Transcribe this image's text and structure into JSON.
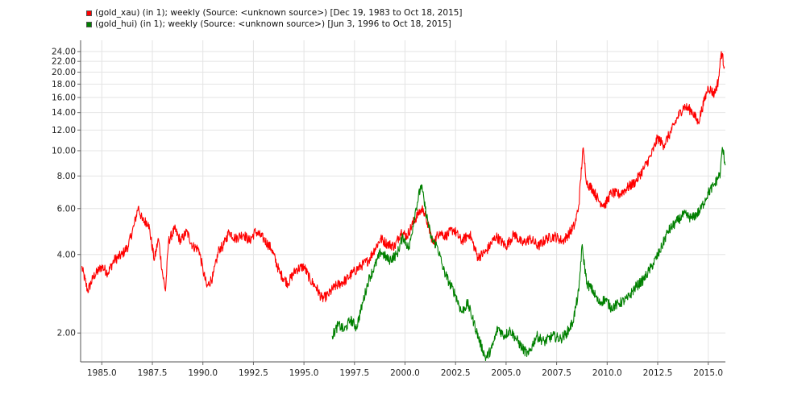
{
  "chart_data": {
    "type": "line",
    "title": "",
    "xlabel": "",
    "ylabel": "",
    "y_scale": "log",
    "xlim": [
      1983.95,
      2015.85
    ],
    "ylim": [
      1.55,
      26.5
    ],
    "grid": true,
    "legend_position": "top-left",
    "x_ticks": [
      "1985.0",
      "1987.5",
      "1990.0",
      "1992.5",
      "1995.0",
      "1997.5",
      "2000.0",
      "2002.5",
      "2005.0",
      "2007.5",
      "2010.0",
      "2012.5",
      "2015.0"
    ],
    "y_ticks": [
      "2.00",
      "4.00",
      "6.00",
      "8.00",
      "10.00",
      "12.00",
      "14.00",
      "16.00",
      "18.00",
      "20.00",
      "22.00",
      "24.00"
    ],
    "series": [
      {
        "name": "(gold_xau) (in 1); weekly (Source: <unknown source>) [Dec 19, 1983 to Oct 18, 2015]",
        "color": "#ff0000",
        "points": [
          [
            1984.0,
            3.6
          ],
          [
            1984.3,
            2.9
          ],
          [
            1984.6,
            3.3
          ],
          [
            1985.0,
            3.6
          ],
          [
            1985.3,
            3.4
          ],
          [
            1985.6,
            3.8
          ],
          [
            1986.0,
            4.0
          ],
          [
            1986.3,
            4.3
          ],
          [
            1986.6,
            5.2
          ],
          [
            1986.8,
            6.1
          ],
          [
            1987.0,
            5.4
          ],
          [
            1987.3,
            5.3
          ],
          [
            1987.6,
            3.8
          ],
          [
            1987.8,
            4.6
          ],
          [
            1988.0,
            3.4
          ],
          [
            1988.15,
            2.9
          ],
          [
            1988.3,
            4.5
          ],
          [
            1988.6,
            5.0
          ],
          [
            1988.9,
            4.5
          ],
          [
            1989.2,
            4.9
          ],
          [
            1989.5,
            4.3
          ],
          [
            1989.8,
            4.2
          ],
          [
            1990.0,
            3.5
          ],
          [
            1990.2,
            3.0
          ],
          [
            1990.5,
            3.3
          ],
          [
            1990.8,
            4.2
          ],
          [
            1991.0,
            4.3
          ],
          [
            1991.3,
            4.9
          ],
          [
            1991.6,
            4.6
          ],
          [
            1992.0,
            4.8
          ],
          [
            1992.3,
            4.5
          ],
          [
            1992.6,
            4.9
          ],
          [
            1993.0,
            4.6
          ],
          [
            1993.4,
            4.2
          ],
          [
            1993.8,
            3.4
          ],
          [
            1994.2,
            3.1
          ],
          [
            1994.6,
            3.5
          ],
          [
            1995.0,
            3.6
          ],
          [
            1995.3,
            3.2
          ],
          [
            1995.6,
            3.0
          ],
          [
            1995.9,
            2.7
          ],
          [
            1996.2,
            2.8
          ],
          [
            1996.5,
            3.0
          ],
          [
            1996.8,
            3.1
          ],
          [
            1997.1,
            3.2
          ],
          [
            1997.4,
            3.4
          ],
          [
            1997.8,
            3.6
          ],
          [
            1998.2,
            3.8
          ],
          [
            1998.5,
            4.2
          ],
          [
            1998.8,
            4.6
          ],
          [
            1999.1,
            4.4
          ],
          [
            1999.5,
            4.3
          ],
          [
            1999.8,
            4.9
          ],
          [
            2000.1,
            4.7
          ],
          [
            2000.4,
            5.3
          ],
          [
            2000.7,
            5.8
          ],
          [
            2000.9,
            6.0
          ],
          [
            2001.1,
            5.3
          ],
          [
            2001.4,
            4.4
          ],
          [
            2001.7,
            4.9
          ],
          [
            2002.0,
            4.7
          ],
          [
            2002.4,
            5.0
          ],
          [
            2002.8,
            4.5
          ],
          [
            2003.2,
            4.8
          ],
          [
            2003.6,
            3.9
          ],
          [
            2004.0,
            4.1
          ],
          [
            2004.5,
            4.7
          ],
          [
            2005.0,
            4.3
          ],
          [
            2005.4,
            4.8
          ],
          [
            2005.8,
            4.4
          ],
          [
            2006.2,
            4.6
          ],
          [
            2006.6,
            4.3
          ],
          [
            2007.0,
            4.6
          ],
          [
            2007.4,
            4.7
          ],
          [
            2007.8,
            4.5
          ],
          [
            2008.1,
            4.8
          ],
          [
            2008.4,
            5.2
          ],
          [
            2008.6,
            6.2
          ],
          [
            2008.8,
            10.2
          ],
          [
            2009.0,
            7.5
          ],
          [
            2009.3,
            7.1
          ],
          [
            2009.6,
            6.4
          ],
          [
            2009.9,
            6.2
          ],
          [
            2010.2,
            6.9
          ],
          [
            2010.6,
            6.8
          ],
          [
            2011.0,
            7.2
          ],
          [
            2011.4,
            7.6
          ],
          [
            2011.8,
            8.5
          ],
          [
            2012.2,
            9.7
          ],
          [
            2012.5,
            11.2
          ],
          [
            2012.8,
            10.5
          ],
          [
            2013.2,
            12.0
          ],
          [
            2013.5,
            13.5
          ],
          [
            2013.8,
            14.8
          ],
          [
            2014.2,
            14.2
          ],
          [
            2014.5,
            12.8
          ],
          [
            2014.8,
            15.5
          ],
          [
            2015.0,
            17.5
          ],
          [
            2015.3,
            16.5
          ],
          [
            2015.5,
            18.5
          ],
          [
            2015.65,
            24.0
          ],
          [
            2015.8,
            21.0
          ]
        ]
      },
      {
        "name": "(gold_hui) (in 1); weekly (Source: <unknown source>) [Jun 3, 1996 to Oct 18, 2015]",
        "color": "#008000",
        "points": [
          [
            1996.4,
            1.95
          ],
          [
            1996.7,
            2.15
          ],
          [
            1997.0,
            2.05
          ],
          [
            1997.3,
            2.25
          ],
          [
            1997.6,
            2.1
          ],
          [
            1997.9,
            2.6
          ],
          [
            1998.2,
            3.2
          ],
          [
            1998.5,
            3.6
          ],
          [
            1998.8,
            4.1
          ],
          [
            1999.2,
            3.8
          ],
          [
            1999.6,
            4.0
          ],
          [
            1999.9,
            4.7
          ],
          [
            2000.2,
            4.2
          ],
          [
            2000.5,
            5.8
          ],
          [
            2000.8,
            7.4
          ],
          [
            2001.0,
            6.0
          ],
          [
            2001.3,
            4.6
          ],
          [
            2001.6,
            4.3
          ],
          [
            2001.9,
            3.5
          ],
          [
            2002.2,
            3.1
          ],
          [
            2002.5,
            2.8
          ],
          [
            2002.8,
            2.4
          ],
          [
            2003.1,
            2.6
          ],
          [
            2003.4,
            2.2
          ],
          [
            2003.7,
            1.85
          ],
          [
            2004.0,
            1.6
          ],
          [
            2004.3,
            1.75
          ],
          [
            2004.6,
            2.1
          ],
          [
            2004.9,
            1.95
          ],
          [
            2005.2,
            2.05
          ],
          [
            2005.5,
            1.9
          ],
          [
            2005.8,
            1.75
          ],
          [
            2006.1,
            1.65
          ],
          [
            2006.5,
            1.95
          ],
          [
            2006.9,
            1.85
          ],
          [
            2007.3,
            1.95
          ],
          [
            2007.7,
            1.9
          ],
          [
            2008.0,
            2.0
          ],
          [
            2008.3,
            2.2
          ],
          [
            2008.6,
            2.9
          ],
          [
            2008.75,
            4.3
          ],
          [
            2009.0,
            3.1
          ],
          [
            2009.3,
            2.9
          ],
          [
            2009.6,
            2.6
          ],
          [
            2009.9,
            2.7
          ],
          [
            2010.2,
            2.5
          ],
          [
            2010.6,
            2.6
          ],
          [
            2011.0,
            2.7
          ],
          [
            2011.4,
            3.0
          ],
          [
            2011.8,
            3.2
          ],
          [
            2012.2,
            3.6
          ],
          [
            2012.6,
            4.1
          ],
          [
            2013.0,
            4.9
          ],
          [
            2013.4,
            5.3
          ],
          [
            2013.8,
            5.7
          ],
          [
            2014.2,
            5.5
          ],
          [
            2014.6,
            5.9
          ],
          [
            2015.0,
            6.9
          ],
          [
            2015.3,
            7.4
          ],
          [
            2015.6,
            8.2
          ],
          [
            2015.7,
            10.3
          ],
          [
            2015.85,
            8.8
          ]
        ]
      }
    ]
  }
}
